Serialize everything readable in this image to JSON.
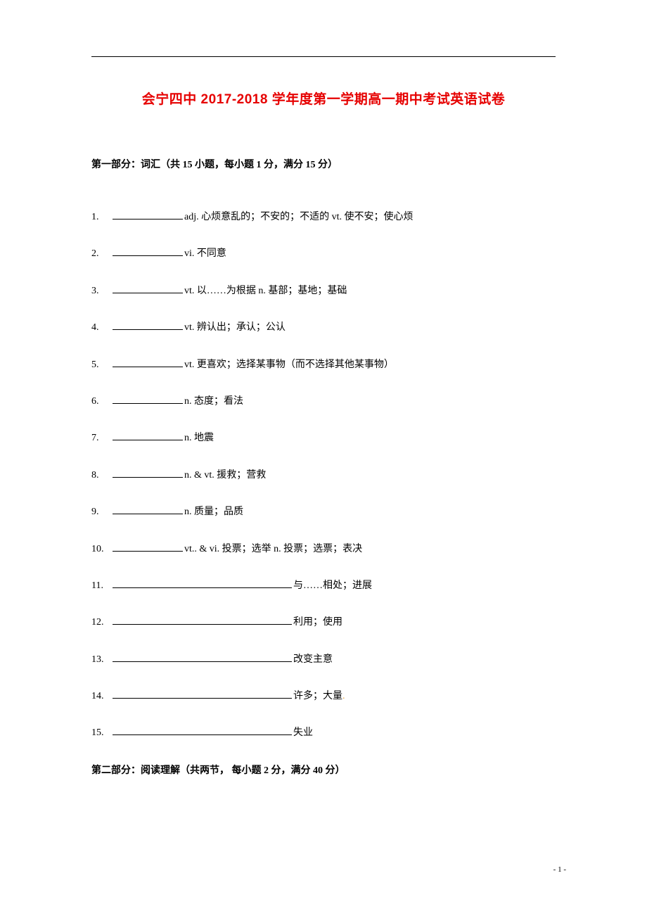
{
  "title": "会宁四中 2017-2018 学年度第一学期高一期中考试英语试卷",
  "section1": {
    "header": "第一部分：词汇（共 15 小题，每小题 1 分，满分 15 分）"
  },
  "items": [
    {
      "num": "1. ",
      "blank": "short",
      "def": "adj. 心烦意乱的；不安的；不适的    vt. 使不安；使心烦"
    },
    {
      "num": "2. ",
      "blank": "short",
      "def": "vi. 不同意"
    },
    {
      "num": "3. ",
      "blank": "short",
      "def": "vt. 以……为根据    n. 基部；基地；基础"
    },
    {
      "num": "4. ",
      "blank": "short",
      "def": "vt. 辨认出；承认；公认"
    },
    {
      "num": "5. ",
      "blank": "short",
      "def": "vt. 更喜欢；选择某事物（而不选择其他某事物）"
    },
    {
      "num": "6. ",
      "blank": "short",
      "def": "n. 态度；看法"
    },
    {
      "num": "7. ",
      "blank": "short",
      "def": "n. 地震"
    },
    {
      "num": "8. ",
      "blank": "short",
      "def": "n. & vt. 援救；营救"
    },
    {
      "num": "9. ",
      "blank": "short",
      "def": "n. 质量；品质"
    },
    {
      "num": "10.",
      "blank": "short",
      "def": "vt.. & vi. 投票；选举   n. 投票；选票；表决"
    },
    {
      "num": "11.",
      "blank": "long",
      "def": "与……相处；进展"
    },
    {
      "num": "12.",
      "blank": "long",
      "def": "利用；使用"
    },
    {
      "num": "13.",
      "blank": "long",
      "def": "改变主意"
    },
    {
      "num": "14.",
      "blank": "long",
      "def": "许多；大量",
      "dot": true
    },
    {
      "num": "15.",
      "blank": "long",
      "def": "失业"
    }
  ],
  "section2": {
    "header": "第二部分：阅读理解（共两节，  每小题 2 分，满分 40 分）"
  },
  "footer": {
    "page": "- 1 -"
  }
}
